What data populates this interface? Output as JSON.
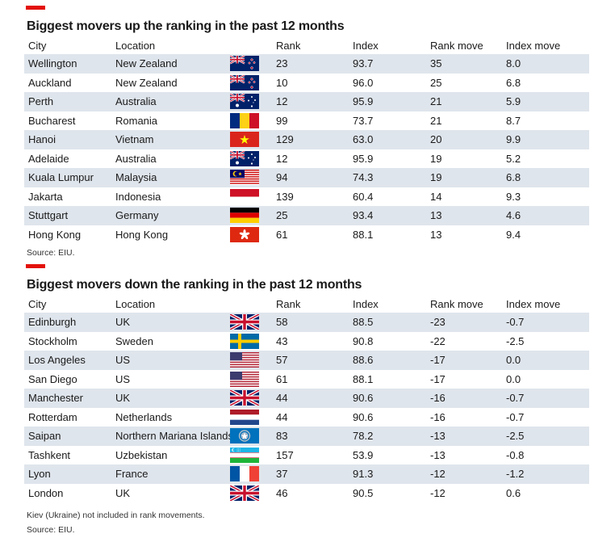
{
  "section_up": {
    "title": "Biggest movers up the ranking in the past 12 months",
    "headers": {
      "city": "City",
      "location": "Location",
      "rank": "Rank",
      "index": "Index",
      "rank_move": "Rank move",
      "index_move": "Index move"
    },
    "rows": [
      {
        "city": "Wellington",
        "location": "New Zealand",
        "flag": "new-zealand-flag",
        "rank": "23",
        "index": "93.7",
        "rank_move": "35",
        "index_move": "8.0"
      },
      {
        "city": "Auckland",
        "location": "New Zealand",
        "flag": "new-zealand-flag",
        "rank": "10",
        "index": "96.0",
        "rank_move": "25",
        "index_move": "6.8"
      },
      {
        "city": "Perth",
        "location": "Australia",
        "flag": "australia-flag",
        "rank": "12",
        "index": "95.9",
        "rank_move": "21",
        "index_move": "5.9"
      },
      {
        "city": "Bucharest",
        "location": "Romania",
        "flag": "romania-flag",
        "rank": "99",
        "index": "73.7",
        "rank_move": "21",
        "index_move": "8.7"
      },
      {
        "city": "Hanoi",
        "location": "Vietnam",
        "flag": "vietnam-flag",
        "rank": "129",
        "index": "63.0",
        "rank_move": "20",
        "index_move": "9.9"
      },
      {
        "city": "Adelaide",
        "location": "Australia",
        "flag": "australia-flag",
        "rank": "12",
        "index": "95.9",
        "rank_move": "19",
        "index_move": "5.2"
      },
      {
        "city": "Kuala Lumpur",
        "location": "Malaysia",
        "flag": "malaysia-flag",
        "rank": "94",
        "index": "74.3",
        "rank_move": "19",
        "index_move": "6.8"
      },
      {
        "city": "Jakarta",
        "location": "Indonesia",
        "flag": "indonesia-flag",
        "rank": "139",
        "index": "60.4",
        "rank_move": "14",
        "index_move": "9.3"
      },
      {
        "city": "Stuttgart",
        "location": "Germany",
        "flag": "germany-flag",
        "rank": "25",
        "index": "93.4",
        "rank_move": "13",
        "index_move": "4.6"
      },
      {
        "city": "Hong Kong",
        "location": "Hong Kong",
        "flag": "hong-kong-flag",
        "rank": "61",
        "index": "88.1",
        "rank_move": "13",
        "index_move": "9.4"
      }
    ],
    "source": "Source: EIU."
  },
  "section_down": {
    "title": "Biggest movers down the ranking in the past 12 months",
    "headers": {
      "city": "City",
      "location": "Location",
      "rank": "Rank",
      "index": "Index",
      "rank_move": "Rank move",
      "index_move": "Index move"
    },
    "rows": [
      {
        "city": "Edinburgh",
        "location": "UK",
        "flag": "uk-flag",
        "rank": "58",
        "index": "88.5",
        "rank_move": "-23",
        "index_move": "-0.7"
      },
      {
        "city": "Stockholm",
        "location": "Sweden",
        "flag": "sweden-flag",
        "rank": "43",
        "index": "90.8",
        "rank_move": "-22",
        "index_move": "-2.5"
      },
      {
        "city": "Los Angeles",
        "location": "US",
        "flag": "us-flag",
        "rank": "57",
        "index": "88.6",
        "rank_move": "-17",
        "index_move": "0.0"
      },
      {
        "city": "San Diego",
        "location": "US",
        "flag": "us-flag",
        "rank": "61",
        "index": "88.1",
        "rank_move": "-17",
        "index_move": "0.0"
      },
      {
        "city": "Manchester",
        "location": "UK",
        "flag": "uk-flag",
        "rank": "44",
        "index": "90.6",
        "rank_move": "-16",
        "index_move": "-0.7"
      },
      {
        "city": "Rotterdam",
        "location": "Netherlands",
        "flag": "netherlands-flag",
        "rank": "44",
        "index": "90.6",
        "rank_move": "-16",
        "index_move": "-0.7"
      },
      {
        "city": "Saipan",
        "location": "Northern Mariana Islands",
        "flag": "northern-mariana-islands-flag",
        "rank": "83",
        "index": "78.2",
        "rank_move": "-13",
        "index_move": "-2.5"
      },
      {
        "city": "Tashkent",
        "location": "Uzbekistan",
        "flag": "uzbekistan-flag",
        "rank": "157",
        "index": "53.9",
        "rank_move": "-13",
        "index_move": "-0.8"
      },
      {
        "city": "Lyon",
        "location": "France",
        "flag": "france-flag",
        "rank": "37",
        "index": "91.3",
        "rank_move": "-12",
        "index_move": "-1.2"
      },
      {
        "city": "London",
        "location": "UK",
        "flag": "uk-flag",
        "rank": "46",
        "index": "90.5",
        "rank_move": "-12",
        "index_move": "0.6"
      }
    ],
    "note": "Kiev (Ukraine) not included in rank movements.",
    "source": "Source: EIU."
  },
  "colors": {
    "accent_red": "#e3120b",
    "row_shade": "#dfe5ec"
  }
}
